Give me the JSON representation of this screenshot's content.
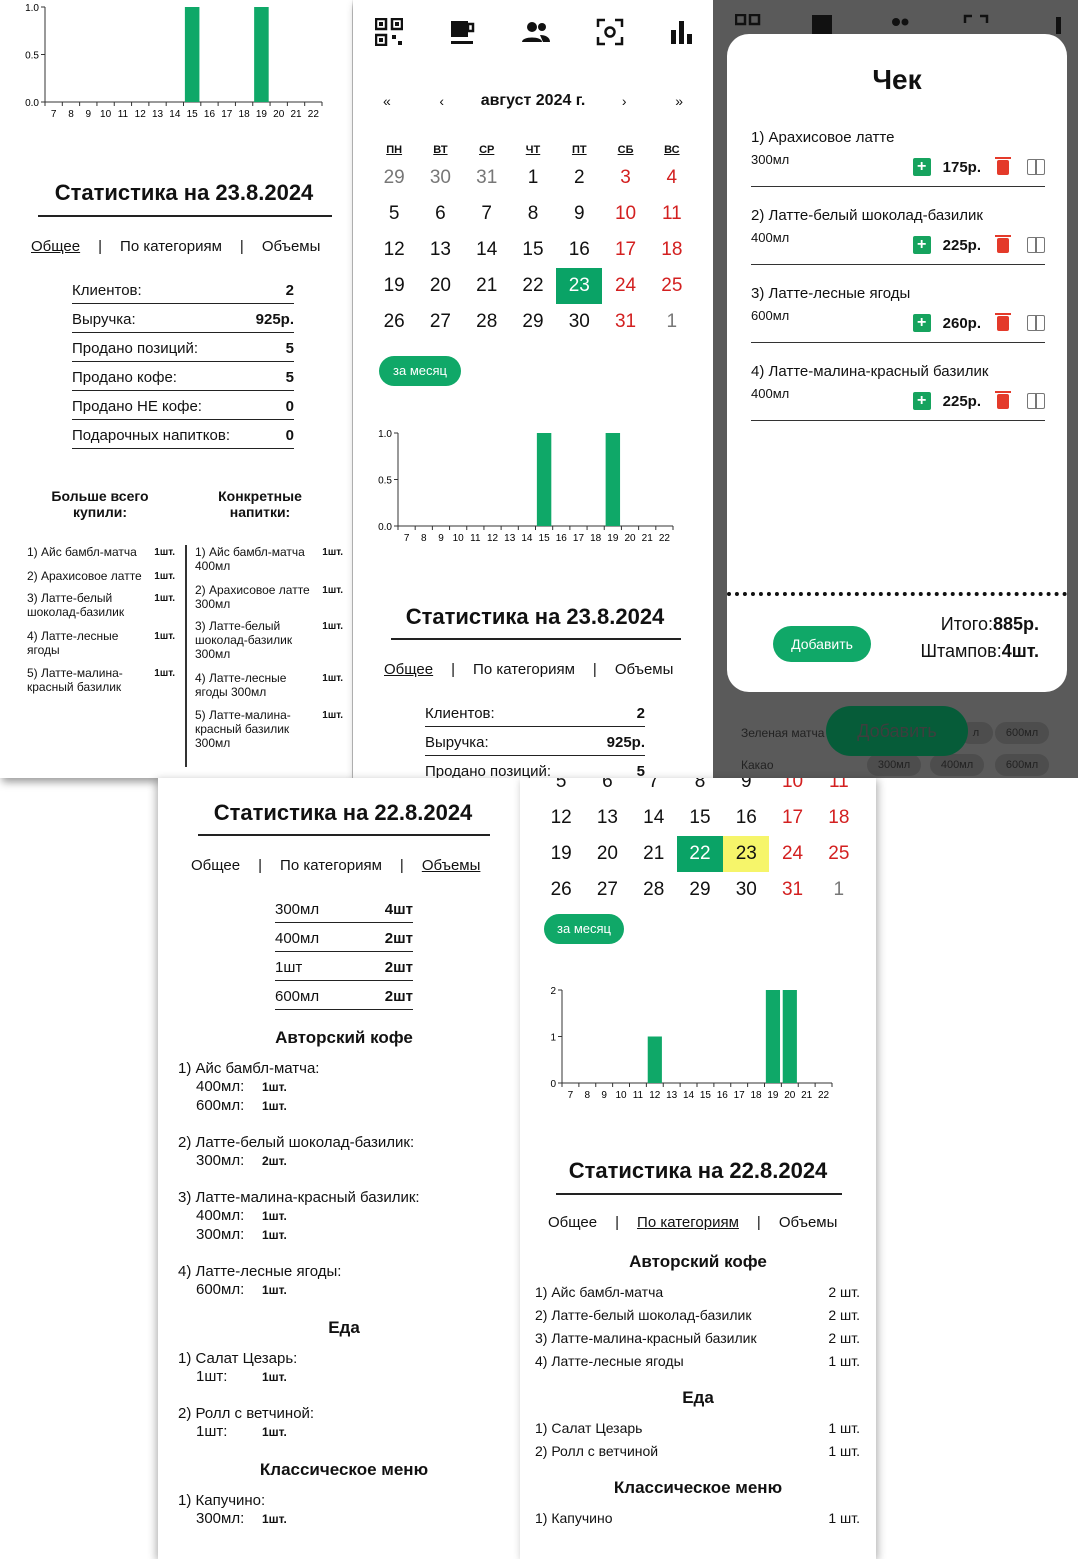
{
  "colors": {
    "accent": "#0aa366",
    "red": "#d32020",
    "highlight": "#f6f56a"
  },
  "tabs": {
    "general": "Общее",
    "categories": "По категориям",
    "volumes": "Объемы",
    "sep": "|"
  },
  "panel1": {
    "chart_data": {
      "type": "bar",
      "x": [
        "7",
        "8",
        "9",
        "10",
        "11",
        "12",
        "13",
        "14",
        "15",
        "16",
        "17",
        "18",
        "19",
        "20",
        "21",
        "22"
      ],
      "values": [
        0,
        0,
        0,
        0,
        0,
        0,
        0,
        0,
        1,
        0,
        0,
        0,
        1,
        0,
        0,
        0
      ],
      "yticks": [
        "1.0",
        "0.5",
        "0.0"
      ],
      "ylim": [
        0,
        1
      ]
    },
    "title": "Статистика на 23.8.2024",
    "stats": [
      {
        "label": "Клиентов:",
        "value": "2"
      },
      {
        "label": "Выручка:",
        "value": "925р."
      },
      {
        "label": "Продано позиций:",
        "value": "5"
      },
      {
        "label": "Продано кофе:",
        "value": "5"
      },
      {
        "label": "Продано НЕ кофе:",
        "value": "0"
      },
      {
        "label": "Подарочных напитков:",
        "value": "0"
      }
    ],
    "most_bought_title": "Больше всего купили:",
    "specific_title": "Конкретные напитки:",
    "most_bought": [
      {
        "name": "1) Айс бамбл-матча",
        "qty": "1шт."
      },
      {
        "name": "2) Арахисовое латте",
        "qty": "1шт."
      },
      {
        "name": "3) Латте-белый шоколад-базилик",
        "qty": "1шт."
      },
      {
        "name": "4) Латте-лесные ягоды",
        "qty": "1шт."
      },
      {
        "name": "5) Латте-малина-красный базилик",
        "qty": "1шт."
      }
    ],
    "specific": [
      {
        "name": "1) Айс бамбл-матча 400мл",
        "qty": "1шт."
      },
      {
        "name": "2) Арахисовое латте 300мл",
        "qty": "1шт."
      },
      {
        "name": "3) Латте-белый шоколад-базилик 300мл",
        "qty": "1шт."
      },
      {
        "name": "4) Латте-лесные ягоды 300мл",
        "qty": "1шт."
      },
      {
        "name": "5) Латте-малина-красный базилик 300мл",
        "qty": "1шт."
      }
    ]
  },
  "panel2": {
    "nav_icons": [
      "qr-icon",
      "coffee-icon",
      "people-icon",
      "scan-icon",
      "chart-icon"
    ],
    "calendar": {
      "prev_year": "«",
      "prev": "‹",
      "month": "август 2024 г.",
      "next": "›",
      "next_year": "»",
      "dow": [
        "ПН",
        "ВТ",
        "СР",
        "ЧТ",
        "ПТ",
        "СБ",
        "ВС"
      ],
      "days": [
        "29",
        "30",
        "31",
        "1",
        "2",
        "3",
        "4",
        "5",
        "6",
        "7",
        "8",
        "9",
        "10",
        "11",
        "12",
        "13",
        "14",
        "15",
        "16",
        "17",
        "18",
        "19",
        "20",
        "21",
        "22",
        "23",
        "24",
        "25",
        "26",
        "27",
        "28",
        "29",
        "30",
        "31",
        "1"
      ]
    },
    "month_button": "за месяц",
    "chart_data": {
      "type": "bar",
      "x": [
        "7",
        "8",
        "9",
        "10",
        "11",
        "12",
        "13",
        "14",
        "15",
        "16",
        "17",
        "18",
        "19",
        "20",
        "21",
        "22"
      ],
      "values": [
        0,
        0,
        0,
        0,
        0,
        0,
        0,
        0,
        1,
        0,
        0,
        0,
        1,
        0,
        0,
        0
      ],
      "yticks": [
        "1.0",
        "0.5",
        "0.0"
      ],
      "ylim": [
        0,
        1
      ]
    },
    "title": "Статистика на 23.8.2024",
    "stats": [
      {
        "label": "Клиентов:",
        "value": "2"
      },
      {
        "label": "Выручка:",
        "value": "925р."
      },
      {
        "label": "Продано позиций:",
        "value": "5"
      }
    ]
  },
  "panel3": {
    "title": "Чек",
    "items": [
      {
        "name": "1) Арахисовое латте",
        "vol": "300мл",
        "price": "175р."
      },
      {
        "name": "2) Латте-белый шоколад-базилик",
        "vol": "400мл",
        "price": "225р."
      },
      {
        "name": "3) Латте-лесные ягоды",
        "vol": "600мл",
        "price": "260р."
      },
      {
        "name": "4) Латте-малина-красный базилик",
        "vol": "400мл",
        "price": "225р."
      }
    ],
    "add_button": "Добавить",
    "total_label": "Итого:",
    "total_value": "885р.",
    "stamps_label": "Штампов:",
    "stamps_value": "4шт.",
    "bg_add_button": "Добавить",
    "bg_rows": [
      {
        "name": "Зеленая матча",
        "a": "л",
        "b": "600мл"
      },
      {
        "name": "Какао",
        "a": "300мл",
        "b": "400мл",
        "c": "600мл"
      }
    ]
  },
  "panel4": {
    "title": "Статистика на 22.8.2024",
    "volumes": [
      {
        "label": "300мл",
        "value": "4шт"
      },
      {
        "label": "400мл",
        "value": "2шт"
      },
      {
        "label": "1шт",
        "value": "2шт"
      },
      {
        "label": "600мл",
        "value": "2шт"
      }
    ],
    "sections": [
      {
        "title": "Авторский кофе",
        "items": [
          {
            "name": "1) Айс бамбл-матча:",
            "lines": [
              {
                "v": "400мл:",
                "q": "1шт."
              },
              {
                "v": "600мл:",
                "q": "1шт."
              }
            ]
          },
          {
            "name": "2) Латте-белый шоколад-базилик:",
            "lines": [
              {
                "v": "300мл:",
                "q": "2шт."
              }
            ]
          },
          {
            "name": "3) Латте-малина-красный базилик:",
            "lines": [
              {
                "v": "400мл:",
                "q": "1шт."
              },
              {
                "v": "300мл:",
                "q": "1шт."
              }
            ]
          },
          {
            "name": "4) Латте-лесные ягоды:",
            "lines": [
              {
                "v": "600мл:",
                "q": "1шт."
              }
            ]
          }
        ]
      },
      {
        "title": "Еда",
        "items": [
          {
            "name": "1) Салат Цезарь:",
            "lines": [
              {
                "v": "1шт:",
                "q": "1шт."
              }
            ]
          },
          {
            "name": "2) Ролл с ветчиной:",
            "lines": [
              {
                "v": "1шт:",
                "q": "1шт."
              }
            ]
          }
        ]
      },
      {
        "title": "Классическое меню",
        "items": [
          {
            "name": "1) Капучино:",
            "lines": [
              {
                "v": "300мл:",
                "q": "1шт."
              }
            ]
          }
        ]
      }
    ]
  },
  "panel5": {
    "calendar_rows": [
      [
        "5",
        "6",
        "7",
        "8",
        "9",
        "10",
        "11"
      ],
      [
        "12",
        "13",
        "14",
        "15",
        "16",
        "17",
        "18"
      ],
      [
        "19",
        "20",
        "21",
        "22",
        "23",
        "24",
        "25"
      ],
      [
        "26",
        "27",
        "28",
        "29",
        "30",
        "31",
        "1"
      ]
    ],
    "month_button": "за месяц",
    "chart_data": {
      "type": "bar",
      "x": [
        "7",
        "8",
        "9",
        "10",
        "11",
        "12",
        "13",
        "14",
        "15",
        "16",
        "17",
        "18",
        "19",
        "20",
        "21",
        "22"
      ],
      "values": [
        0,
        0,
        0,
        0,
        0,
        1,
        0,
        0,
        0,
        0,
        0,
        0,
        2,
        2,
        0,
        0
      ],
      "yticks": [
        "2",
        "1",
        "0"
      ],
      "ylim": [
        0,
        2
      ]
    },
    "title": "Статистика на 22.8.2024",
    "sections": [
      {
        "title": "Авторский кофе",
        "rows": [
          {
            "name": "1) Айс бамбл-матча",
            "qty": "2 шт."
          },
          {
            "name": "2) Латте-белый шоколад-базилик",
            "qty": "2 шт."
          },
          {
            "name": "3) Латте-малина-красный базилик",
            "qty": "2 шт."
          },
          {
            "name": "4) Латте-лесные ягоды",
            "qty": "1 шт."
          }
        ]
      },
      {
        "title": "Еда",
        "rows": [
          {
            "name": "1) Салат Цезарь",
            "qty": "1 шт."
          },
          {
            "name": "2) Ролл с ветчиной",
            "qty": "1 шт."
          }
        ]
      },
      {
        "title": "Классическое меню",
        "rows": [
          {
            "name": "1) Капучино",
            "qty": "1 шт."
          }
        ]
      }
    ]
  }
}
